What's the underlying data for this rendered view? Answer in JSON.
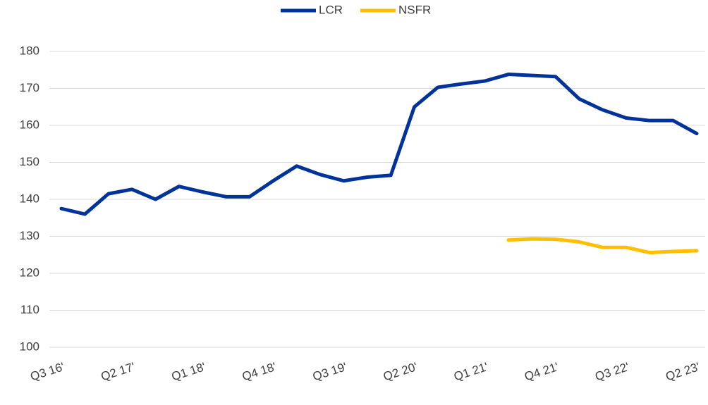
{
  "chart_data": {
    "type": "line",
    "categories": [
      "Q3 16'",
      null,
      null,
      "Q2 17'",
      null,
      null,
      "Q1 18'",
      null,
      null,
      "Q4 18'",
      null,
      null,
      "Q3 19'",
      null,
      null,
      "Q2 20'",
      null,
      null,
      "Q1 21'",
      null,
      null,
      "Q4 21'",
      null,
      null,
      "Q3 22'",
      null,
      null,
      "Q2 23'"
    ],
    "series": [
      {
        "name": "LCR",
        "color": "#003399",
        "values": [
          137.5,
          136,
          141.5,
          142.7,
          140,
          143.5,
          142,
          140.7,
          140.7,
          145,
          149,
          146.7,
          145,
          146,
          146.5,
          165,
          170.3,
          171.2,
          172,
          173.8,
          173.5,
          173.2,
          167.2,
          164.2,
          162,
          161.3,
          161.3,
          157.8
        ]
      },
      {
        "name": "NSFR",
        "color": "#ffbf00",
        "values": [
          null,
          null,
          null,
          null,
          null,
          null,
          null,
          null,
          null,
          null,
          null,
          null,
          null,
          null,
          null,
          null,
          null,
          null,
          null,
          129,
          129.3,
          129.2,
          128.5,
          127,
          127,
          125.6,
          125.9,
          126.1
        ]
      }
    ],
    "ylim": [
      100,
      180
    ],
    "yticks": [
      100,
      110,
      120,
      130,
      140,
      150,
      160,
      170,
      180
    ],
    "grid": true,
    "legend": "top"
  }
}
